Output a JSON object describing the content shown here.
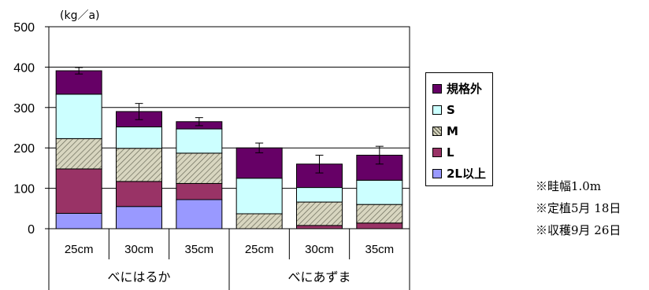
{
  "chart_data": {
    "type": "bar",
    "stacked": true,
    "unit_label": "(kg／a)",
    "ylim": [
      0,
      500
    ],
    "y_ticks": [
      "0",
      "100",
      "200",
      "300",
      "400",
      "500"
    ],
    "categories": [
      "25cm",
      "30cm",
      "35cm",
      "25cm",
      "30cm",
      "35cm"
    ],
    "groups": [
      {
        "label": "べにはるか",
        "span": 3
      },
      {
        "label": "べにあずま",
        "span": 3
      }
    ],
    "series": [
      {
        "name": "2L以上",
        "color": "#9999ff",
        "pattern": "solid",
        "values": [
          38,
          55,
          72,
          0,
          0,
          0
        ]
      },
      {
        "name": "L",
        "color": "#993366",
        "pattern": "solid",
        "values": [
          110,
          62,
          40,
          0,
          8,
          14
        ]
      },
      {
        "name": "M",
        "color": "#d8d6c0",
        "pattern": "hatch",
        "values": [
          75,
          82,
          75,
          37,
          58,
          46
        ]
      },
      {
        "name": "S",
        "color": "#ccffff",
        "pattern": "solid",
        "values": [
          110,
          53,
          60,
          88,
          36,
          60
        ]
      },
      {
        "name": "規格外",
        "color": "#660066",
        "pattern": "solid",
        "values": [
          58,
          38,
          18,
          75,
          58,
          62
        ]
      }
    ],
    "error_bars": [
      8,
      20,
      10,
      12,
      22,
      22
    ],
    "legend": {
      "placement": "right",
      "order": [
        "規格外",
        "S",
        "M",
        "L",
        "2L以上"
      ]
    },
    "grid": true
  },
  "notes": [
    "※畦幅1.0m",
    "※定植5月 18日",
    "※収穫9月 26日"
  ]
}
